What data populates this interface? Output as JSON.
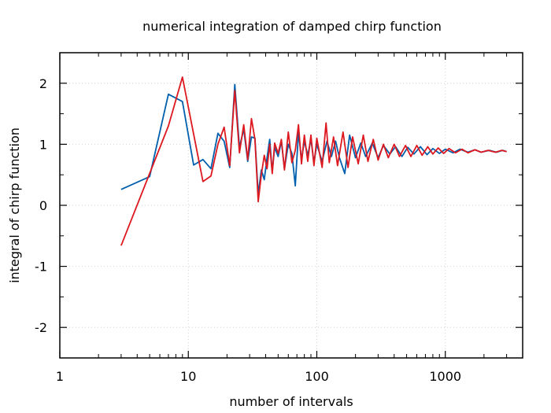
{
  "chart_data": {
    "type": "line",
    "title": "numerical integration of damped chirp function",
    "xlabel": "number of intervals",
    "ylabel": "integral of chirp function",
    "x_scale": "log",
    "xlim": [
      1,
      4000
    ],
    "ylim": [
      -2.5,
      2.5
    ],
    "x_ticks": [
      1,
      10,
      100,
      1000
    ],
    "x_tick_labels": [
      "1",
      "10",
      "100",
      "1000"
    ],
    "y_ticks": [
      -2,
      -1,
      0,
      1,
      2
    ],
    "y_tick_labels": [
      "-2",
      "-1",
      "0",
      "1",
      "2"
    ],
    "grid": true,
    "series": [
      {
        "color": "#0060ad",
        "points": [
          [
            3,
            0.26
          ],
          [
            5,
            0.47
          ],
          [
            7,
            1.82
          ],
          [
            9,
            1.7
          ],
          [
            11,
            0.66
          ],
          [
            13,
            0.75
          ],
          [
            15,
            0.6
          ],
          [
            17,
            1.18
          ],
          [
            19,
            1.05
          ],
          [
            21,
            0.62
          ],
          [
            23,
            1.98
          ],
          [
            25,
            0.95
          ],
          [
            27,
            1.25
          ],
          [
            29,
            0.72
          ],
          [
            31,
            1.12
          ],
          [
            33,
            1.1
          ],
          [
            35,
            0.18
          ],
          [
            37,
            0.58
          ],
          [
            39,
            0.42
          ],
          [
            41,
            0.78
          ],
          [
            43,
            1.08
          ],
          [
            45,
            0.55
          ],
          [
            47,
            0.95
          ],
          [
            50,
            0.8
          ],
          [
            53,
            1.05
          ],
          [
            56,
            0.6
          ],
          [
            60,
            1.0
          ],
          [
            64,
            0.85
          ],
          [
            68,
            0.32
          ],
          [
            72,
            1.2
          ],
          [
            76,
            0.75
          ],
          [
            80,
            1.05
          ],
          [
            85,
            0.82
          ],
          [
            90,
            1.08
          ],
          [
            95,
            0.7
          ],
          [
            100,
            1.0
          ],
          [
            110,
            0.72
          ],
          [
            120,
            1.05
          ],
          [
            130,
            0.8
          ],
          [
            140,
            1.05
          ],
          [
            150,
            0.78
          ],
          [
            165,
            0.52
          ],
          [
            180,
            1.15
          ],
          [
            200,
            0.78
          ],
          [
            220,
            1.02
          ],
          [
            240,
            0.8
          ],
          [
            270,
            1.02
          ],
          [
            300,
            0.78
          ],
          [
            330,
            0.98
          ],
          [
            370,
            0.84
          ],
          [
            410,
            0.96
          ],
          [
            460,
            0.8
          ],
          [
            510,
            0.95
          ],
          [
            570,
            0.84
          ],
          [
            640,
            0.96
          ],
          [
            720,
            0.83
          ],
          [
            800,
            0.93
          ],
          [
            900,
            0.85
          ],
          [
            1000,
            0.92
          ],
          [
            1150,
            0.86
          ],
          [
            1300,
            0.92
          ],
          [
            1500,
            0.87
          ],
          [
            1700,
            0.91
          ],
          [
            1900,
            0.87
          ],
          [
            2200,
            0.9
          ],
          [
            2500,
            0.87
          ],
          [
            2800,
            0.9
          ],
          [
            3000,
            0.88
          ]
        ]
      },
      {
        "color": "#dd181f",
        "points": [
          [
            3,
            -0.66
          ],
          [
            7,
            1.3
          ],
          [
            9,
            2.1
          ],
          [
            13,
            0.39
          ],
          [
            15,
            0.48
          ],
          [
            17,
            1.0
          ],
          [
            19,
            1.28
          ],
          [
            21,
            0.65
          ],
          [
            23,
            1.88
          ],
          [
            25,
            0.86
          ],
          [
            27,
            1.32
          ],
          [
            29,
            0.75
          ],
          [
            31,
            1.42
          ],
          [
            33,
            1.08
          ],
          [
            35,
            0.06
          ],
          [
            37,
            0.5
          ],
          [
            39,
            0.82
          ],
          [
            41,
            0.6
          ],
          [
            43,
            1.0
          ],
          [
            45,
            0.52
          ],
          [
            47,
            1.02
          ],
          [
            50,
            0.85
          ],
          [
            53,
            1.08
          ],
          [
            56,
            0.58
          ],
          [
            60,
            1.2
          ],
          [
            64,
            0.7
          ],
          [
            68,
            0.9
          ],
          [
            72,
            1.32
          ],
          [
            76,
            0.68
          ],
          [
            80,
            1.15
          ],
          [
            85,
            0.72
          ],
          [
            90,
            1.15
          ],
          [
            95,
            0.65
          ],
          [
            100,
            1.1
          ],
          [
            110,
            0.62
          ],
          [
            118,
            1.35
          ],
          [
            125,
            0.7
          ],
          [
            135,
            1.12
          ],
          [
            145,
            0.65
          ],
          [
            160,
            1.2
          ],
          [
            175,
            0.62
          ],
          [
            190,
            1.12
          ],
          [
            210,
            0.68
          ],
          [
            230,
            1.15
          ],
          [
            250,
            0.72
          ],
          [
            275,
            1.08
          ],
          [
            300,
            0.74
          ],
          [
            330,
            1.0
          ],
          [
            360,
            0.78
          ],
          [
            400,
            1.0
          ],
          [
            440,
            0.8
          ],
          [
            490,
            0.98
          ],
          [
            540,
            0.8
          ],
          [
            600,
            0.98
          ],
          [
            660,
            0.82
          ],
          [
            730,
            0.96
          ],
          [
            800,
            0.84
          ],
          [
            880,
            0.94
          ],
          [
            970,
            0.85
          ],
          [
            1070,
            0.93
          ],
          [
            1200,
            0.86
          ],
          [
            1350,
            0.92
          ],
          [
            1500,
            0.86
          ],
          [
            1700,
            0.91
          ],
          [
            1900,
            0.87
          ],
          [
            2150,
            0.9
          ],
          [
            2450,
            0.87
          ],
          [
            2750,
            0.9
          ],
          [
            3000,
            0.88
          ]
        ]
      }
    ]
  }
}
